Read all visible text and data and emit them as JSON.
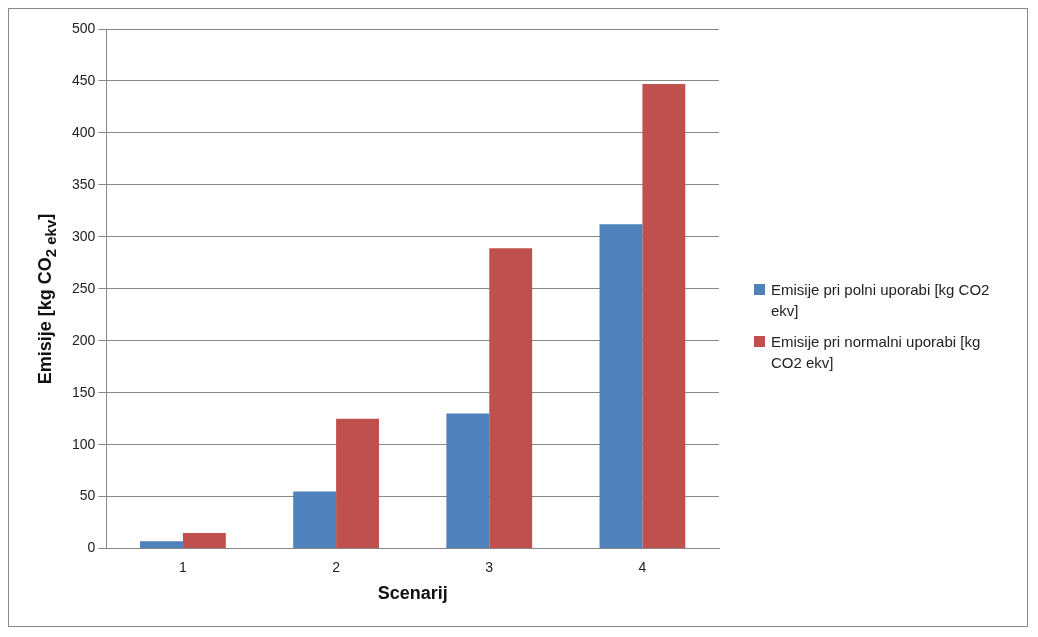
{
  "chart_data": {
    "type": "bar",
    "xlabel": "Scenarij",
    "ylabel": "Emisije [kg CO$_{2 ekv}$]",
    "categories": [
      "1",
      "2",
      "3",
      "4"
    ],
    "series": [
      {
        "name": "Emisije pri polni uporabi [kg CO2 ekv]",
        "color": "#4f81bd",
        "values": [
          7,
          55,
          130,
          312
        ]
      },
      {
        "name": "Emisije pri normalni uporabi [kg CO2 ekv]",
        "color": "#c0504d",
        "values": [
          15,
          125,
          289,
          447
        ]
      }
    ],
    "ylim": [
      0,
      500
    ],
    "yticks": [
      0,
      50,
      100,
      150,
      200,
      250,
      300,
      350,
      400,
      450,
      500
    ],
    "grid": "y",
    "legend": "right"
  }
}
